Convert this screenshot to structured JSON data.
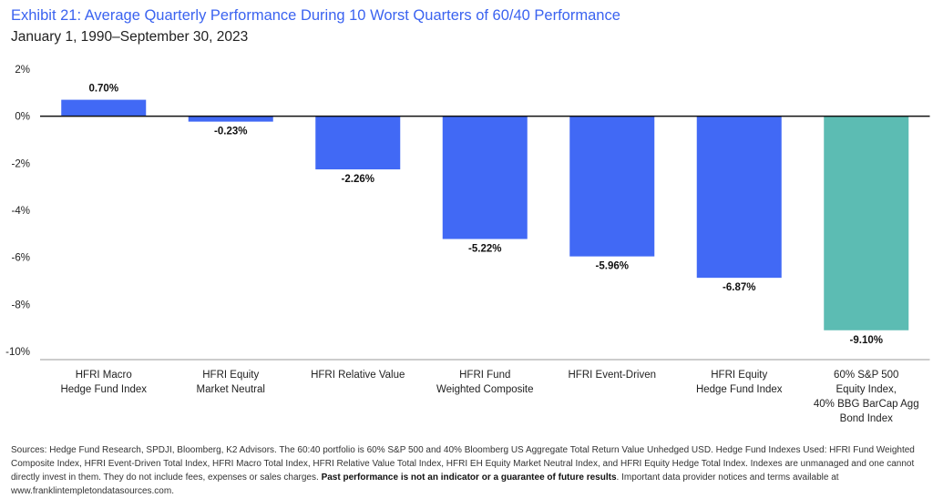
{
  "header": {
    "title": "Exhibit 21: Average Quarterly Performance During 10 Worst Quarters of 60/40 Performance",
    "subtitle": "January 1, 1990–September 30, 2023"
  },
  "colors": {
    "bar_primary": "#4169f5",
    "bar_highlight": "#5cbcb3",
    "title": "#3b63f0"
  },
  "chart_data": {
    "type": "bar",
    "title": "Exhibit 21: Average Quarterly Performance During 10 Worst Quarters of 60/40 Performance",
    "subtitle": "January 1, 1990–September 30, 2023",
    "categories": [
      [
        "HFRI Macro",
        "Hedge Fund Index"
      ],
      [
        "HFRI Equity",
        "Market Neutral"
      ],
      [
        "HFRI Relative Value"
      ],
      [
        "HFRI Fund",
        "Weighted Composite"
      ],
      [
        "HFRI Event-Driven"
      ],
      [
        "HFRI Equity",
        "Hedge Fund Index"
      ],
      [
        "60% S&P 500",
        "Equity Index,",
        "40% BBG BarCap Agg",
        "Bond Index"
      ]
    ],
    "values": [
      0.7,
      -0.23,
      -2.26,
      -5.22,
      -5.96,
      -6.87,
      -9.1
    ],
    "value_labels": [
      "0.70%",
      "-0.23%",
      "-2.26%",
      "-5.22%",
      "-5.96%",
      "-6.87%",
      "-9.10%"
    ],
    "highlight_index": 6,
    "ylim": [
      -10,
      2
    ],
    "yticks": [
      2,
      0,
      -2,
      -4,
      -6,
      -8,
      -10
    ],
    "ytick_labels": [
      "2%",
      "0%",
      "-2%",
      "-4%",
      "-6%",
      "-8%",
      "-10%"
    ],
    "xlabel": "",
    "ylabel": "",
    "grid": false,
    "legend": "none"
  },
  "footnote": {
    "text_before": "Sources: Hedge Fund Research, SPDJI, Bloomberg, K2 Advisors. The 60:40 portfolio is 60% S&P 500 and 40% Bloomberg US Aggregate Total Return Value Unhedged USD. Hedge Fund Indexes Used: HFRI Fund Weighted Composite Index, HFRI Event-Driven Total Index, HFRI Macro Total Index, HFRI Relative Value Total Index, HFRI EH Equity Market Neutral Index, and HFRI Equity Hedge Total Index. Indexes are unmanaged and one cannot directly invest in them. They do not include fees, expenses or sales charges. ",
    "bold": "Past performance is not an indicator or a guarantee of future results",
    "text_after": ". Important data provider notices and terms available at www.franklintempletondatasources.com."
  }
}
